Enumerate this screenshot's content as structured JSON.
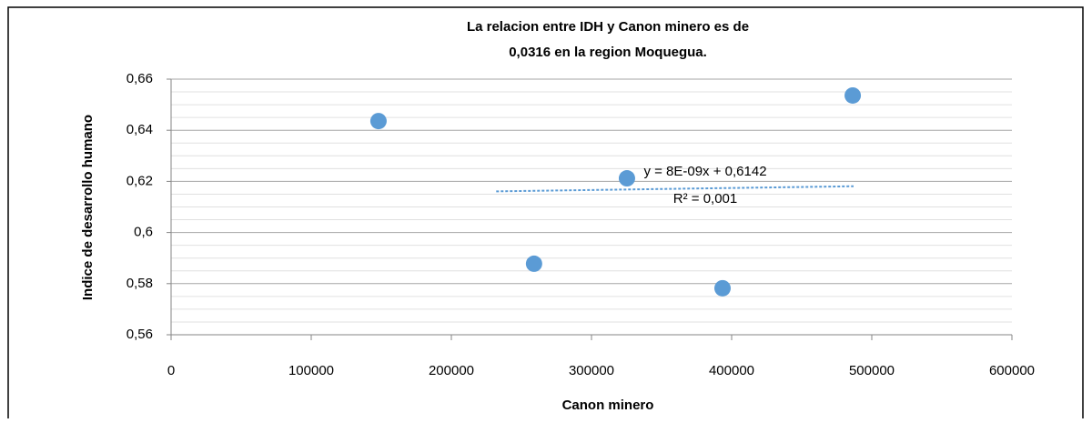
{
  "chart_data": {
    "type": "scatter",
    "title": [
      "La relacion entre IDH y Canon minero es de",
      "0,0316 en la region Moquegua."
    ],
    "x_label": "Canon minero",
    "y_label": "Indice de desarrollo humano",
    "series": [
      {
        "name": "IDH",
        "color": "#5b9bd5",
        "x": [
          148000,
          259000,
          325300,
          393500,
          486400
        ],
        "values": [
          0.6436,
          0.5878,
          0.6212,
          0.5782,
          0.6536
        ]
      }
    ],
    "trendline": {
      "x": [
        232000,
        487000
      ],
      "values": [
        0.6161,
        0.6181
      ],
      "color": "#5b9bd5",
      "equation": "y = 8E-09x + 0,6142",
      "r2": "R² = 0,001"
    },
    "xlim": [
      0,
      600000
    ],
    "xticks": [
      0,
      100000,
      200000,
      300000,
      400000,
      500000,
      600000
    ],
    "ylim": [
      0.56,
      0.66
    ],
    "yticks": [
      {
        "value": 0.56,
        "label": "0,56"
      },
      {
        "value": 0.58,
        "label": "0,58"
      },
      {
        "value": 0.6,
        "label": "0,6"
      },
      {
        "value": 0.62,
        "label": "0,62"
      },
      {
        "value": 0.64,
        "label": "0,64"
      },
      {
        "value": 0.66,
        "label": "0,66"
      }
    ],
    "yminor": [
      0.565,
      0.57,
      0.575,
      0.585,
      0.59,
      0.595,
      0.605,
      0.61,
      0.615,
      0.625,
      0.63,
      0.635,
      0.645,
      0.65,
      0.655
    ],
    "grid": true
  }
}
